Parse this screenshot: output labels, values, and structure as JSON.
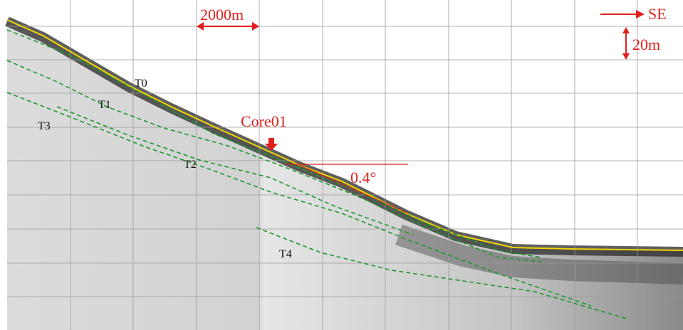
{
  "labels": {
    "scale_bar": "2000m",
    "direction": "SE",
    "vertical_scale": "20m",
    "core": "Core01",
    "angle": "0.4°"
  },
  "horizons": [
    "T0",
    "T1",
    "T2",
    "T3",
    "T4"
  ]
}
